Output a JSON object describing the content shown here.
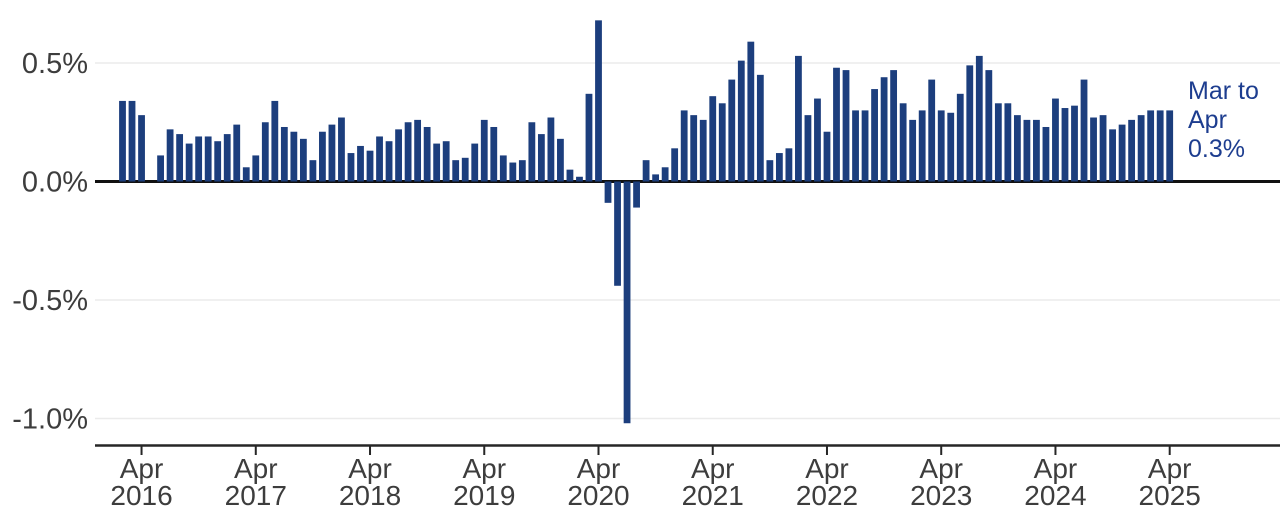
{
  "annotation": {
    "line1": "Mar to",
    "line2": "Apr",
    "line3": "0.3%",
    "color": "#1d3d8f"
  },
  "colors": {
    "bar": "#1c3e7d",
    "axis_text": "#3d3d3d",
    "zero_line": "#111111",
    "gridline": "#ebebeb",
    "axis_line": "#262626"
  },
  "chart_data": {
    "type": "bar",
    "title": "",
    "ylabel": "",
    "xlabel": "",
    "unit": "%",
    "grid": "horizontal",
    "ylim": [
      -1.1,
      0.75
    ],
    "y_ticks": [
      {
        "label": "0.5%",
        "value": 0.5
      },
      {
        "label": "0.0%",
        "value": 0.0
      },
      {
        "label": "-0.5%",
        "value": -0.5
      },
      {
        "label": "-1.0%",
        "value": -1.0
      }
    ],
    "x_ticks": [
      {
        "line1": "Apr",
        "line2": "2016",
        "month_index": 2
      },
      {
        "line1": "Apr",
        "line2": "2017",
        "month_index": 14
      },
      {
        "line1": "Apr",
        "line2": "2018",
        "month_index": 26
      },
      {
        "line1": "Apr",
        "line2": "2019",
        "month_index": 38
      },
      {
        "line1": "Apr",
        "line2": "2020",
        "month_index": 50
      },
      {
        "line1": "Apr",
        "line2": "2021",
        "month_index": 62
      },
      {
        "line1": "Apr",
        "line2": "2022",
        "month_index": 74
      },
      {
        "line1": "Apr",
        "line2": "2023",
        "month_index": 86
      },
      {
        "line1": "Apr",
        "line2": "2024",
        "month_index": 98
      },
      {
        "line1": "Apr",
        "line2": "2025",
        "month_index": 110
      }
    ],
    "months": [
      "2016-02",
      "2016-03",
      "2016-04",
      "2016-05",
      "2016-06",
      "2016-07",
      "2016-08",
      "2016-09",
      "2016-10",
      "2016-11",
      "2016-12",
      "2017-01",
      "2017-02",
      "2017-03",
      "2017-04",
      "2017-05",
      "2017-06",
      "2017-07",
      "2017-08",
      "2017-09",
      "2017-10",
      "2017-11",
      "2017-12",
      "2018-01",
      "2018-02",
      "2018-03",
      "2018-04",
      "2018-05",
      "2018-06",
      "2018-07",
      "2018-08",
      "2018-09",
      "2018-10",
      "2018-11",
      "2018-12",
      "2019-01",
      "2019-02",
      "2019-03",
      "2019-04",
      "2019-05",
      "2019-06",
      "2019-07",
      "2019-08",
      "2019-09",
      "2019-10",
      "2019-11",
      "2019-12",
      "2020-01",
      "2020-02",
      "2020-03",
      "2020-04",
      "2020-05",
      "2020-06",
      "2020-07",
      "2020-08",
      "2020-09",
      "2020-10",
      "2020-11",
      "2020-12",
      "2021-01",
      "2021-02",
      "2021-03",
      "2021-04",
      "2021-05",
      "2021-06",
      "2021-07",
      "2021-08",
      "2021-09",
      "2021-10",
      "2021-11",
      "2021-12",
      "2022-01",
      "2022-02",
      "2022-03",
      "2022-04",
      "2022-05",
      "2022-06",
      "2022-07",
      "2022-08",
      "2022-09",
      "2022-10",
      "2022-11",
      "2022-12",
      "2023-01",
      "2023-02",
      "2023-03",
      "2023-04",
      "2023-05",
      "2023-06",
      "2023-07",
      "2023-08",
      "2023-09",
      "2023-10",
      "2023-11",
      "2023-12",
      "2024-01",
      "2024-02",
      "2024-03",
      "2024-04",
      "2024-05",
      "2024-06",
      "2024-07",
      "2024-08",
      "2024-09",
      "2024-10",
      "2024-11",
      "2024-12",
      "2025-01",
      "2025-02",
      "2025-03",
      "2025-04"
    ],
    "values": [
      0.34,
      0.34,
      0.28,
      0.0,
      0.11,
      0.22,
      0.2,
      0.16,
      0.19,
      0.19,
      0.17,
      0.2,
      0.24,
      0.06,
      0.11,
      0.25,
      0.34,
      0.23,
      0.21,
      0.18,
      0.09,
      0.21,
      0.24,
      0.27,
      0.12,
      0.15,
      0.13,
      0.19,
      0.17,
      0.22,
      0.25,
      0.26,
      0.23,
      0.16,
      0.17,
      0.09,
      0.1,
      0.16,
      0.26,
      0.23,
      0.11,
      0.08,
      0.09,
      0.25,
      0.2,
      0.27,
      0.18,
      0.05,
      0.02,
      0.37,
      0.68,
      -0.09,
      -0.44,
      -1.02,
      -0.11,
      0.09,
      0.03,
      0.06,
      0.14,
      0.3,
      0.28,
      0.26,
      0.36,
      0.33,
      0.43,
      0.51,
      0.59,
      0.45,
      0.09,
      0.12,
      0.14,
      0.53,
      0.28,
      0.35,
      0.21,
      0.48,
      0.47,
      0.3,
      0.3,
      0.39,
      0.44,
      0.47,
      0.33,
      0.26,
      0.3,
      0.43,
      0.3,
      0.29,
      0.37,
      0.49,
      0.53,
      0.47,
      0.33,
      0.33,
      0.28,
      0.26,
      0.26,
      0.23,
      0.35,
      0.31,
      0.32,
      0.43,
      0.27,
      0.28,
      0.22,
      0.24,
      0.26,
      0.28,
      0.3,
      0.3,
      0.3
    ],
    "annotation_last_point": "Mar to Apr 0.3%",
    "legend": "none"
  }
}
